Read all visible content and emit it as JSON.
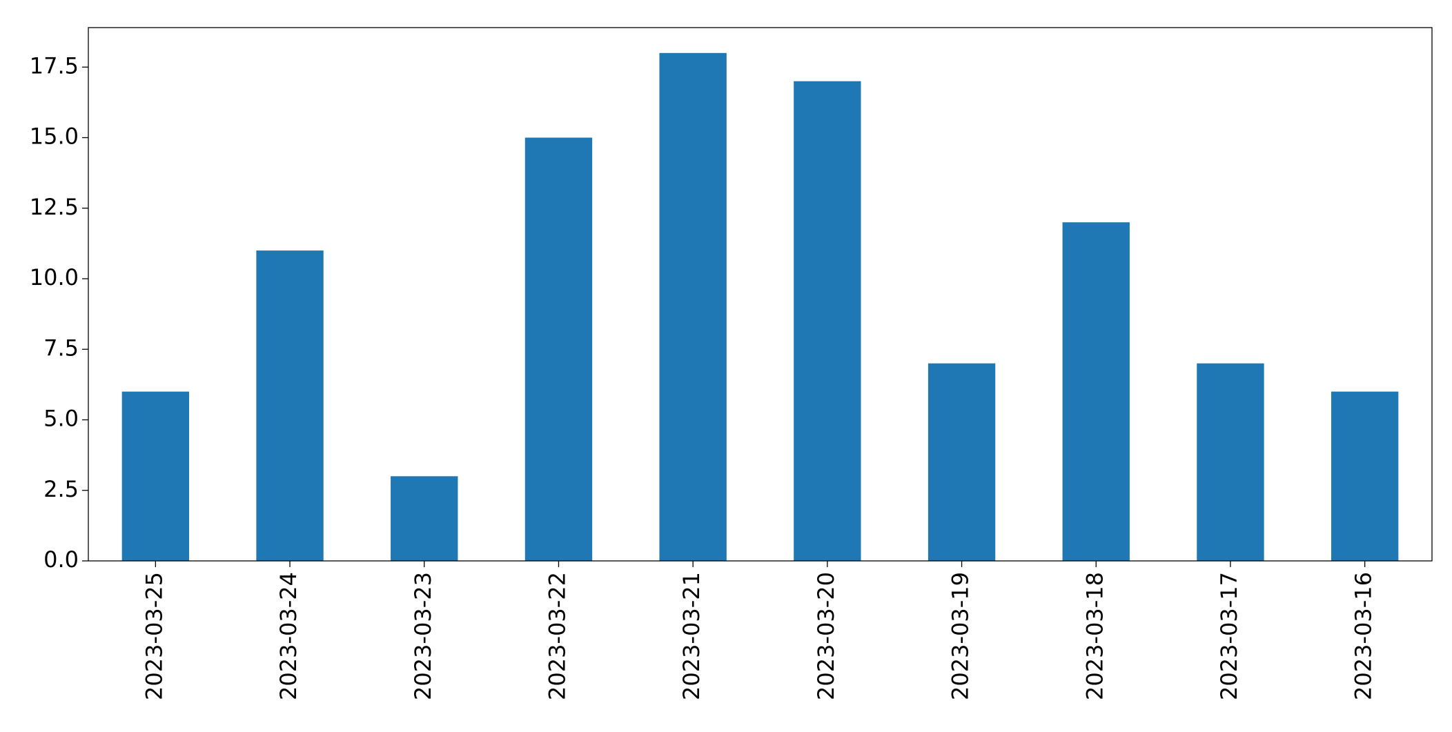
{
  "chart_data": {
    "type": "bar",
    "categories": [
      "2023-03-25",
      "2023-03-24",
      "2023-03-23",
      "2023-03-22",
      "2023-03-21",
      "2023-03-20",
      "2023-03-19",
      "2023-03-18",
      "2023-03-17",
      "2023-03-16"
    ],
    "values": [
      6,
      11,
      3,
      15,
      18,
      17,
      7,
      12,
      7,
      6
    ],
    "color": "#1f77b4",
    "ylim": [
      0,
      18.9
    ],
    "yticks": [
      {
        "value": 0,
        "label": "0.0"
      },
      2.5,
      {
        "value": 5,
        "label": "5.0"
      },
      7.5,
      {
        "value": 10,
        "label": "10.0"
      },
      12.5,
      {
        "value": 15,
        "label": "15.0"
      },
      17.5
    ],
    "grid": false
  }
}
